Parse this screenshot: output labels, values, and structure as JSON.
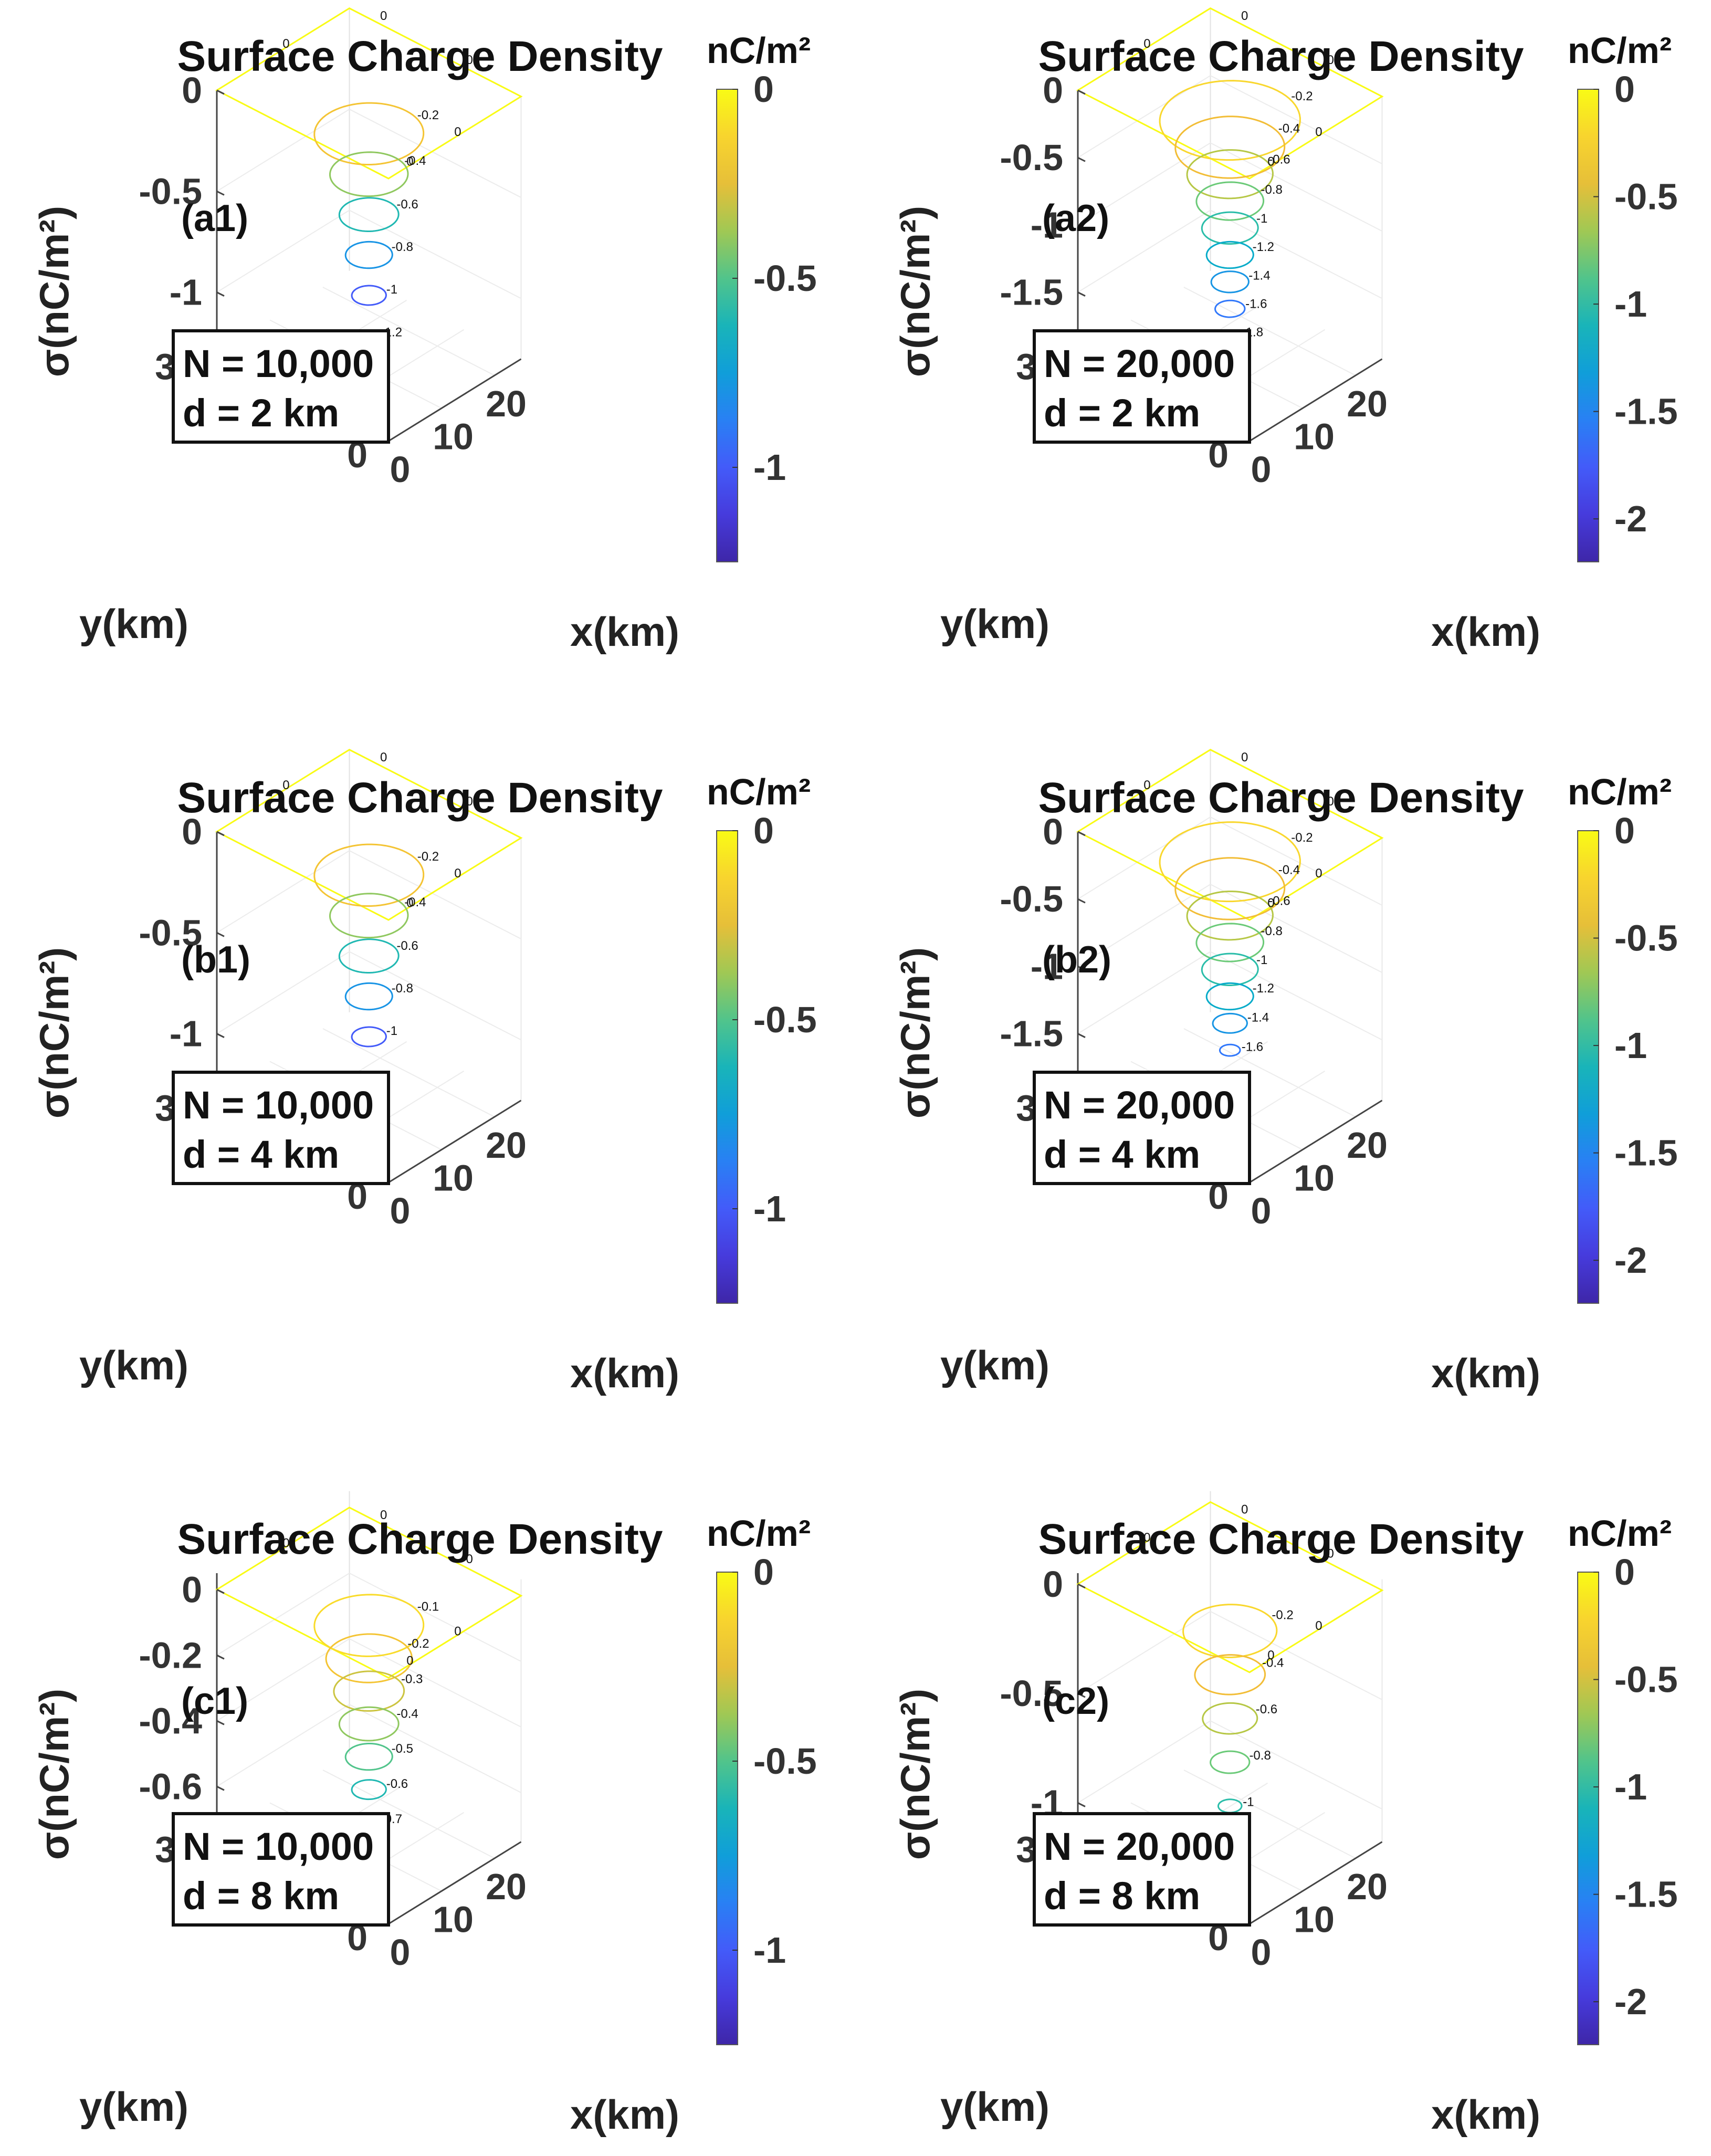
{
  "figure": {
    "panels_count": 6
  },
  "chart_data": [
    {
      "id": "a1",
      "type": "contour3",
      "title": "Surface Charge Density",
      "panel_label": "(a1)",
      "annotation": {
        "n_text": "N = 10,000",
        "d_text": "d = 2 km"
      },
      "xlabel": "x(km)",
      "ylabel": "y(km)",
      "zlabel": "σ(nC/m²)",
      "xticks": [
        "0",
        "10",
        "20"
      ],
      "yticks": [
        "0",
        "10",
        "20",
        "30"
      ],
      "zlim": [
        -1.3,
        0
      ],
      "zticks": [
        0,
        -0.5,
        -1
      ],
      "zticklabels": [
        "0",
        "-0.5",
        "-1"
      ],
      "colorbar": {
        "unit": "nC/m²",
        "min": -1.25,
        "max": 0,
        "ticks": [
          0,
          -0.5,
          -1
        ],
        "ticklabels": [
          "0",
          "-0.5",
          "-1"
        ]
      },
      "levels": [
        {
          "value": 0,
          "label": "0",
          "radius": 13
        },
        {
          "value": -0.2,
          "label": "-0.2",
          "radius": 7
        },
        {
          "value": -0.4,
          "label": "-0.4",
          "radius": 5
        },
        {
          "value": -0.6,
          "label": "-0.6",
          "radius": 3.8
        },
        {
          "value": -0.8,
          "label": "-0.8",
          "radius": 3
        },
        {
          "value": -1.0,
          "label": "-1",
          "radius": 2.2
        },
        {
          "value": -1.2,
          "label": "-1.2",
          "radius": 1.3
        }
      ]
    },
    {
      "id": "a2",
      "type": "contour3",
      "title": "Surface Charge Density",
      "panel_label": "(a2)",
      "annotation": {
        "n_text": "N = 20,000",
        "d_text": "d = 2 km"
      },
      "xlabel": "x(km)",
      "ylabel": "y(km)",
      "zlabel": "σ(nC/m²)",
      "xticks": [
        "0",
        "10",
        "20"
      ],
      "yticks": [
        "0",
        "10",
        "20",
        "30"
      ],
      "zlim": [
        -1.95,
        0
      ],
      "zticks": [
        0,
        -0.5,
        -1,
        -1.5
      ],
      "zticklabels": [
        "0",
        "-0.5",
        "-1",
        "-1.5"
      ],
      "colorbar": {
        "unit": "nC/m²",
        "min": -2.2,
        "max": 0,
        "ticks": [
          0,
          -0.5,
          -1,
          -1.5,
          -2
        ],
        "ticklabels": [
          "0",
          "-0.5",
          "-1",
          "-1.5",
          "-2"
        ]
      },
      "levels": [
        {
          "value": 0,
          "label": "0",
          "radius": 13
        },
        {
          "value": -0.2,
          "label": "-0.2",
          "radius": 9
        },
        {
          "value": -0.4,
          "label": "-0.4",
          "radius": 7
        },
        {
          "value": -0.6,
          "label": "-0.6",
          "radius": 5.5
        },
        {
          "value": -0.8,
          "label": "-0.8",
          "radius": 4.3
        },
        {
          "value": -1.0,
          "label": "-1",
          "radius": 3.6
        },
        {
          "value": -1.2,
          "label": "-1.2",
          "radius": 3
        },
        {
          "value": -1.4,
          "label": "-1.4",
          "radius": 2.4
        },
        {
          "value": -1.6,
          "label": "-1.6",
          "radius": 1.9
        },
        {
          "value": -1.8,
          "label": "-1.8",
          "radius": 1.3
        }
      ]
    },
    {
      "id": "b1",
      "type": "contour3",
      "title": "Surface Charge Density",
      "panel_label": "(b1)",
      "annotation": {
        "n_text": "N = 10,000",
        "d_text": "d = 4 km"
      },
      "xlabel": "x(km)",
      "ylabel": "y(km)",
      "zlabel": "σ(nC/m²)",
      "xticks": [
        "0",
        "10",
        "20"
      ],
      "yticks": [
        "0",
        "10",
        "20",
        "30"
      ],
      "zlim": [
        -1.3,
        0
      ],
      "zticks": [
        0,
        -0.5,
        -1
      ],
      "zticklabels": [
        "0",
        "-0.5",
        "-1"
      ],
      "colorbar": {
        "unit": "nC/m²",
        "min": -1.25,
        "max": 0,
        "ticks": [
          0,
          -0.5,
          -1
        ],
        "ticklabels": [
          "0",
          "-0.5",
          "-1"
        ]
      },
      "levels": [
        {
          "value": 0,
          "label": "0",
          "radius": 13
        },
        {
          "value": -0.2,
          "label": "-0.2",
          "radius": 7
        },
        {
          "value": -0.4,
          "label": "-0.4",
          "radius": 5
        },
        {
          "value": -0.6,
          "label": "-0.6",
          "radius": 3.8
        },
        {
          "value": -0.8,
          "label": "-0.8",
          "radius": 3
        },
        {
          "value": -1.0,
          "label": "-1",
          "radius": 2.2
        },
        {
          "value": -1.2,
          "label": "",
          "radius": 0.5
        }
      ]
    },
    {
      "id": "b2",
      "type": "contour3",
      "title": "Surface Charge Density",
      "panel_label": "(b2)",
      "annotation": {
        "n_text": "N = 20,000",
        "d_text": "d = 4 km"
      },
      "xlabel": "x(km)",
      "ylabel": "y(km)",
      "zlabel": "σ(nC/m²)",
      "xticks": [
        "0",
        "10",
        "20"
      ],
      "yticks": [
        "0",
        "10",
        "20",
        "30"
      ],
      "zlim": [
        -1.95,
        0
      ],
      "zticks": [
        0,
        -0.5,
        -1,
        -1.5
      ],
      "zticklabels": [
        "0",
        "-0.5",
        "-1",
        "-1.5"
      ],
      "colorbar": {
        "unit": "nC/m²",
        "min": -2.2,
        "max": 0,
        "ticks": [
          0,
          -0.5,
          -1,
          -1.5,
          -2
        ],
        "ticklabels": [
          "0",
          "-0.5",
          "-1",
          "-1.5",
          "-2"
        ]
      },
      "levels": [
        {
          "value": 0,
          "label": "0",
          "radius": 13
        },
        {
          "value": -0.2,
          "label": "-0.2",
          "radius": 9
        },
        {
          "value": -0.4,
          "label": "-0.4",
          "radius": 7
        },
        {
          "value": -0.6,
          "label": "-0.6",
          "radius": 5.5
        },
        {
          "value": -0.8,
          "label": "-0.8",
          "radius": 4.3
        },
        {
          "value": -1.0,
          "label": "-1",
          "radius": 3.6
        },
        {
          "value": -1.2,
          "label": "-1.2",
          "radius": 3
        },
        {
          "value": -1.4,
          "label": "-1.4",
          "radius": 2.2
        },
        {
          "value": -1.6,
          "label": "-1.6",
          "radius": 1.3
        }
      ]
    },
    {
      "id": "c1",
      "type": "contour3",
      "title": "Surface Charge Density",
      "panel_label": "(c1)",
      "annotation": {
        "n_text": "N = 10,000",
        "d_text": "d = 8 km"
      },
      "xlabel": "x(km)",
      "ylabel": "y(km)",
      "zlabel": "σ(nC/m²)",
      "xticks": [
        "0",
        "10",
        "20"
      ],
      "yticks": [
        "0",
        "10",
        "20",
        "30"
      ],
      "zlim": [
        -0.75,
        0.05
      ],
      "zticks": [
        0,
        -0.2,
        -0.4,
        -0.6
      ],
      "zticklabels": [
        "0",
        "-0.2",
        "-0.4",
        "-0.6"
      ],
      "colorbar": {
        "unit": "nC/m²",
        "min": -1.25,
        "max": 0,
        "ticks": [
          0,
          -0.5,
          -1
        ],
        "ticklabels": [
          "0",
          "-0.5",
          "-1"
        ]
      },
      "levels": [
        {
          "value": 0,
          "label": "0",
          "radius": 13
        },
        {
          "value": -0.1,
          "label": "-0.1",
          "radius": 7
        },
        {
          "value": -0.2,
          "label": "-0.2",
          "radius": 5.5
        },
        {
          "value": -0.3,
          "label": "-0.3",
          "radius": 4.5
        },
        {
          "value": -0.4,
          "label": "-0.4",
          "radius": 3.8
        },
        {
          "value": -0.5,
          "label": "-0.5",
          "radius": 3
        },
        {
          "value": -0.6,
          "label": "-0.6",
          "radius": 2.2
        },
        {
          "value": -0.7,
          "label": "-0.7",
          "radius": 1.3
        }
      ]
    },
    {
      "id": "c2",
      "type": "contour3",
      "title": "Surface Charge Density",
      "panel_label": "(c2)",
      "annotation": {
        "n_text": "N = 20,000",
        "d_text": "d = 8 km"
      },
      "xlabel": "x(km)",
      "ylabel": "y(km)",
      "zlabel": "σ(nC/m²)",
      "xticks": [
        "0",
        "10",
        "20"
      ],
      "yticks": [
        "0",
        "10",
        "20",
        "30"
      ],
      "zlim": [
        -1.15,
        0.05
      ],
      "zticks": [
        0,
        -0.5,
        -1
      ],
      "zticklabels": [
        "0",
        "-0.5",
        "-1"
      ],
      "colorbar": {
        "unit": "nC/m²",
        "min": -2.2,
        "max": 0,
        "ticks": [
          0,
          -0.5,
          -1,
          -1.5,
          -2
        ],
        "ticklabels": [
          "0",
          "-0.5",
          "-1",
          "-1.5",
          "-2"
        ]
      },
      "levels": [
        {
          "value": 0,
          "label": "0",
          "radius": 13
        },
        {
          "value": -0.2,
          "label": "-0.2",
          "radius": 6
        },
        {
          "value": -0.4,
          "label": "-0.4",
          "radius": 4.5
        },
        {
          "value": -0.6,
          "label": "-0.6",
          "radius": 3.5
        },
        {
          "value": -0.8,
          "label": "-0.8",
          "radius": 2.5
        },
        {
          "value": -1.0,
          "label": "-1",
          "radius": 1.5
        }
      ]
    }
  ]
}
